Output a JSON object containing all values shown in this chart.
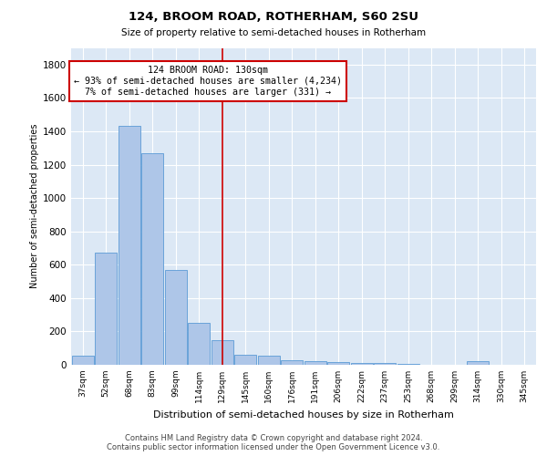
{
  "title": "124, BROOM ROAD, ROTHERHAM, S60 2SU",
  "subtitle": "Size of property relative to semi-detached houses in Rotherham",
  "xlabel": "Distribution of semi-detached houses by size in Rotherham",
  "ylabel": "Number of semi-detached properties",
  "categories": [
    "37sqm",
    "52sqm",
    "68sqm",
    "83sqm",
    "99sqm",
    "114sqm",
    "129sqm",
    "145sqm",
    "160sqm",
    "176sqm",
    "191sqm",
    "206sqm",
    "222sqm",
    "237sqm",
    "253sqm",
    "268sqm",
    "299sqm",
    "314sqm",
    "330sqm",
    "345sqm"
  ],
  "values": [
    55,
    670,
    1430,
    1270,
    570,
    250,
    150,
    60,
    55,
    30,
    20,
    18,
    12,
    10,
    8,
    0,
    0,
    20,
    0,
    0
  ],
  "bar_color": "#aec6e8",
  "bar_edge_color": "#5b9bd5",
  "vline_x_index": 6,
  "vline_color": "#cc0000",
  "annotation_line1": "124 BROOM ROAD: 130sqm",
  "annotation_line2": "← 93% of semi-detached houses are smaller (4,234)",
  "annotation_line3": "7% of semi-detached houses are larger (331) →",
  "annotation_box_color": "#ffffff",
  "annotation_box_edge_color": "#cc0000",
  "ylim": [
    0,
    1900
  ],
  "yticks": [
    0,
    200,
    400,
    600,
    800,
    1000,
    1200,
    1400,
    1600,
    1800
  ],
  "bg_color": "#dce8f5",
  "footer_line1": "Contains HM Land Registry data © Crown copyright and database right 2024.",
  "footer_line2": "Contains public sector information licensed under the Open Government Licence v3.0."
}
